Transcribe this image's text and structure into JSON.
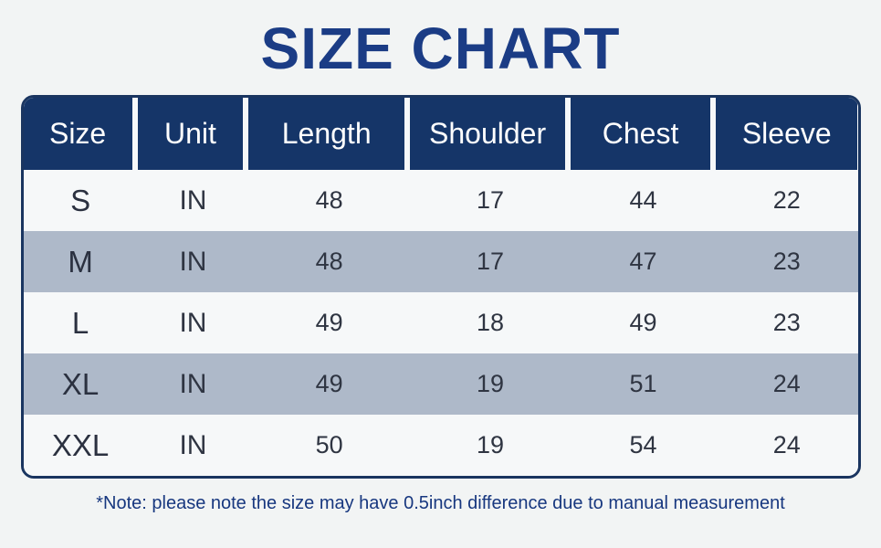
{
  "title": "SIZE CHART",
  "note": "*Note: please note the size may have 0.5inch difference due to manual measurement",
  "colors": {
    "page_background": "#f2f4f4",
    "title_text": "#1b3c85",
    "header_background": "#153568",
    "header_text": "#ffffff",
    "row_background": "#f6f8f9",
    "row_alt_background": "#aeb9c9",
    "table_border": "#1a3560",
    "cell_text": "#2f3542",
    "note_text": "#17377f"
  },
  "chart_data": {
    "type": "table",
    "title": "SIZE CHART",
    "columns": [
      "Size",
      "Unit",
      "Length",
      "Shoulder",
      "Chest",
      "Sleeve"
    ],
    "rows": [
      [
        "S",
        "IN",
        48,
        17,
        44,
        22
      ],
      [
        "M",
        "IN",
        48,
        17,
        47,
        23
      ],
      [
        "L",
        "IN",
        49,
        18,
        49,
        23
      ],
      [
        "XL",
        "IN",
        49,
        19,
        51,
        24
      ],
      [
        "XXL",
        "IN",
        50,
        19,
        54,
        24
      ]
    ],
    "note": "*Note: please note the size may have 0.5inch difference due to manual measurement",
    "layout": {
      "alternating_row_shading": true,
      "header_style": "navy blocks with light gaps",
      "border": "rounded navy outline"
    }
  }
}
